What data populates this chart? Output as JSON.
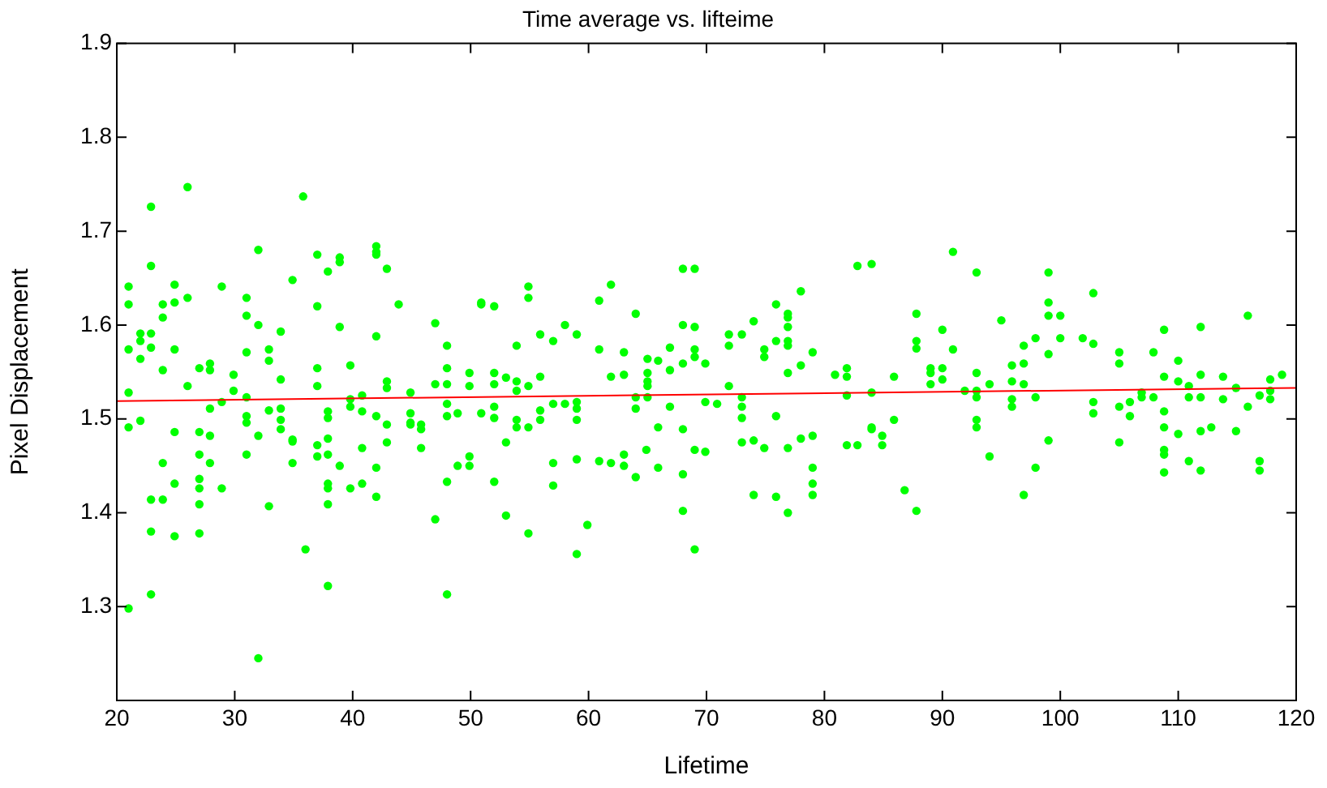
{
  "chart_data": {
    "type": "scatter",
    "title": "Time average vs. lifteime",
    "xlabel": "Lifetime",
    "ylabel": "Pixel Displacement",
    "xlim": [
      20,
      120
    ],
    "xticks": [
      20,
      30,
      40,
      50,
      60,
      70,
      80,
      90,
      100,
      110,
      120
    ],
    "ylim": [
      1.2,
      1.9
    ],
    "yticks": [
      1.3,
      1.4,
      1.5,
      1.6,
      1.7,
      1.8,
      1.9
    ],
    "grid": false,
    "legend": false,
    "marker": "circle",
    "series": [
      {
        "type": "scatter",
        "color": "#00ff00",
        "x": [
          21.0,
          21.0,
          21.0,
          21.0,
          21.0,
          22.0,
          22.0,
          22.0,
          22.0,
          22.9,
          22.9,
          22.9,
          22.9,
          23.9,
          23.9,
          23.9,
          24.9,
          24.9,
          24.9,
          24.9,
          26.0,
          26.0,
          26.0,
          27.0,
          27.0,
          27.9,
          27.9,
          27.9,
          27.9,
          28.9,
          28.9,
          29.9,
          29.9,
          31.0,
          31.0,
          31.0,
          31.0,
          31.0,
          31.0,
          32.0,
          32.0,
          32.0,
          32.9,
          32.9,
          32.9,
          33.9,
          33.9,
          33.9,
          33.9,
          33.9,
          34.9,
          34.9,
          35.8,
          37.0,
          37.0,
          37.0,
          37.0,
          37.0,
          37.9,
          37.9,
          37.9,
          37.9,
          38.9,
          38.9,
          38.9,
          39.8,
          39.8,
          39.8,
          40.8,
          40.8,
          40.8,
          42.0,
          42.0,
          42.0,
          42.0,
          42.0,
          42.9,
          42.9,
          42.9,
          42.9,
          42.9,
          43.9,
          44.9,
          44.9,
          44.9,
          44.9,
          45.8,
          45.8,
          45.8,
          47.0,
          47.0,
          48.0,
          48.0,
          48.0,
          48.0,
          48.0,
          48.9,
          49.9,
          49.9,
          50.9,
          50.9,
          50.9,
          52.0,
          52.0,
          52.0,
          52.0,
          52.0,
          53.0,
          53.0,
          53.9,
          53.9,
          53.9,
          53.9,
          53.9,
          23.9,
          22.9,
          23.9,
          24.9,
          27.0,
          27.0,
          27.0,
          27.0,
          27.0,
          27.9,
          28.9,
          22.9,
          24.9,
          22.9,
          21.0,
          31.0,
          32.9,
          32.0,
          34.9,
          34.9,
          36.0,
          37.0,
          37.9,
          37.9,
          37.9,
          37.9,
          37.9,
          38.9,
          39.8,
          40.8,
          42.0,
          42.0,
          47.0,
          48.0,
          48.0,
          48.9,
          49.9,
          49.9,
          52.0,
          53.0,
          54.9,
          54.9,
          54.9,
          54.9,
          55.9,
          55.9,
          55.9,
          55.9,
          57.0,
          57.0,
          58.0,
          58.0,
          59.0,
          59.0,
          59.0,
          59.0,
          60.9,
          60.9,
          61.9,
          61.9,
          63.0,
          63.0,
          64.0,
          64.0,
          64.0,
          65.0,
          65.0,
          65.0,
          65.0,
          65.0,
          65.9,
          65.9,
          66.9,
          66.9,
          66.9,
          68.0,
          68.0,
          68.0,
          68.0,
          69.0,
          69.0,
          69.0,
          69.0,
          69.9,
          69.9,
          70.9,
          71.9,
          71.9,
          71.9,
          73.0,
          73.0,
          73.0,
          73.0,
          73.0,
          74.0,
          74.0,
          74.9,
          74.9,
          74.9,
          75.9,
          75.9,
          75.9,
          76.9,
          76.9,
          76.9,
          76.9,
          76.9,
          76.9,
          76.9,
          78.0,
          78.0,
          78.0,
          79.0,
          79.0,
          80.9,
          81.9,
          81.9,
          81.9,
          81.9,
          82.8,
          82.8,
          84.0,
          84.0,
          84.0,
          84.0,
          84.9,
          84.9,
          85.9,
          85.9,
          87.8,
          87.8,
          87.8,
          54.9,
          57.0,
          57.0,
          59.0,
          59.0,
          59.9,
          60.9,
          61.9,
          63.0,
          63.0,
          64.0,
          64.9,
          65.9,
          68.0,
          68.0,
          69.0,
          69.0,
          69.9,
          74.0,
          75.9,
          76.9,
          79.0,
          79.0,
          79.0,
          86.8,
          87.8,
          89.0,
          89.0,
          89.0,
          90.0,
          90.0,
          90.0,
          90.9,
          90.9,
          91.9,
          92.9,
          92.9,
          92.9,
          92.9,
          92.9,
          92.9,
          94.0,
          95.0,
          95.9,
          95.9,
          95.9,
          95.9,
          96.9,
          96.9,
          96.9,
          97.9,
          97.9,
          99.0,
          99.0,
          99.0,
          99.0,
          99.0,
          100.0,
          100.0,
          101.9,
          102.8,
          102.8,
          102.8,
          102.8,
          105.0,
          105.0,
          105.0,
          105.0,
          105.9,
          105.9,
          106.9,
          106.9,
          107.9,
          107.9,
          108.8,
          108.8,
          108.8,
          108.8,
          108.8,
          110.0,
          110.0,
          110.0,
          110.9,
          110.9,
          111.9,
          111.9,
          111.9,
          111.9,
          112.8,
          113.8,
          113.8,
          114.9,
          114.9,
          115.9,
          115.9,
          116.9,
          117.8,
          117.8,
          117.8,
          118.8,
          94.0,
          96.9,
          97.9,
          108.8,
          108.8,
          110.9,
          111.9,
          116.9,
          116.9
        ],
        "values": [
          1.641,
          1.622,
          1.574,
          1.528,
          1.491,
          1.591,
          1.583,
          1.564,
          1.498,
          1.726,
          1.663,
          1.591,
          1.576,
          1.622,
          1.608,
          1.552,
          1.643,
          1.624,
          1.574,
          1.486,
          1.747,
          1.629,
          1.535,
          1.554,
          1.486,
          1.559,
          1.552,
          1.511,
          1.482,
          1.641,
          1.518,
          1.547,
          1.53,
          1.629,
          1.61,
          1.571,
          1.523,
          1.503,
          1.496,
          1.68,
          1.6,
          1.482,
          1.574,
          1.562,
          1.509,
          1.593,
          1.542,
          1.511,
          1.499,
          1.489,
          1.648,
          1.478,
          1.737,
          1.675,
          1.62,
          1.554,
          1.535,
          1.472,
          1.657,
          1.508,
          1.501,
          1.479,
          1.672,
          1.667,
          1.598,
          1.557,
          1.521,
          1.513,
          1.525,
          1.508,
          1.469,
          1.684,
          1.678,
          1.675,
          1.588,
          1.503,
          1.66,
          1.54,
          1.533,
          1.494,
          1.475,
          1.622,
          1.528,
          1.506,
          1.496,
          1.494,
          1.494,
          1.489,
          1.469,
          1.602,
          1.537,
          1.578,
          1.554,
          1.537,
          1.516,
          1.503,
          1.506,
          1.549,
          1.535,
          1.624,
          1.622,
          1.506,
          1.62,
          1.549,
          1.537,
          1.513,
          1.501,
          1.544,
          1.475,
          1.578,
          1.54,
          1.53,
          1.499,
          1.491,
          1.453,
          1.414,
          1.414,
          1.431,
          1.462,
          1.436,
          1.426,
          1.409,
          1.378,
          1.453,
          1.426,
          1.38,
          1.375,
          1.313,
          1.298,
          1.462,
          1.407,
          1.245,
          1.453,
          1.476,
          1.361,
          1.46,
          1.462,
          1.431,
          1.426,
          1.409,
          1.322,
          1.45,
          1.426,
          1.431,
          1.448,
          1.417,
          1.393,
          1.433,
          1.313,
          1.45,
          1.46,
          1.45,
          1.433,
          1.397,
          1.641,
          1.629,
          1.535,
          1.491,
          1.59,
          1.545,
          1.509,
          1.499,
          1.583,
          1.516,
          1.6,
          1.516,
          1.59,
          1.518,
          1.511,
          1.499,
          1.626,
          1.574,
          1.643,
          1.545,
          1.571,
          1.547,
          1.612,
          1.523,
          1.511,
          1.564,
          1.549,
          1.54,
          1.535,
          1.523,
          1.562,
          1.491,
          1.576,
          1.552,
          1.513,
          1.66,
          1.6,
          1.559,
          1.489,
          1.66,
          1.598,
          1.574,
          1.566,
          1.559,
          1.518,
          1.516,
          1.59,
          1.578,
          1.535,
          1.59,
          1.523,
          1.513,
          1.501,
          1.475,
          1.604,
          1.477,
          1.574,
          1.566,
          1.469,
          1.622,
          1.583,
          1.503,
          1.612,
          1.608,
          1.598,
          1.583,
          1.578,
          1.549,
          1.469,
          1.636,
          1.557,
          1.479,
          1.571,
          1.482,
          1.547,
          1.554,
          1.545,
          1.525,
          1.472,
          1.663,
          1.472,
          1.665,
          1.528,
          1.491,
          1.489,
          1.482,
          1.472,
          1.545,
          1.499,
          1.612,
          1.583,
          1.575,
          1.378,
          1.453,
          1.429,
          1.457,
          1.356,
          1.387,
          1.455,
          1.453,
          1.462,
          1.45,
          1.438,
          1.467,
          1.448,
          1.441,
          1.402,
          1.467,
          1.361,
          1.465,
          1.419,
          1.417,
          1.4,
          1.448,
          1.431,
          1.419,
          1.424,
          1.402,
          1.554,
          1.549,
          1.537,
          1.595,
          1.554,
          1.542,
          1.678,
          1.574,
          1.53,
          1.656,
          1.549,
          1.53,
          1.523,
          1.499,
          1.491,
          1.537,
          1.605,
          1.557,
          1.54,
          1.521,
          1.513,
          1.578,
          1.559,
          1.537,
          1.586,
          1.523,
          1.656,
          1.624,
          1.61,
          1.569,
          1.477,
          1.61,
          1.586,
          1.586,
          1.634,
          1.58,
          1.518,
          1.506,
          1.571,
          1.559,
          1.513,
          1.475,
          1.518,
          1.503,
          1.528,
          1.523,
          1.571,
          1.523,
          1.595,
          1.545,
          1.508,
          1.491,
          1.467,
          1.562,
          1.54,
          1.484,
          1.535,
          1.523,
          1.598,
          1.547,
          1.523,
          1.487,
          1.491,
          1.545,
          1.521,
          1.533,
          1.487,
          1.61,
          1.513,
          1.525,
          1.542,
          1.53,
          1.521,
          1.547,
          1.46,
          1.419,
          1.448,
          1.462,
          1.443,
          1.455,
          1.445,
          1.455,
          1.445
        ]
      },
      {
        "type": "line",
        "color": "#ff0000",
        "marker": "none",
        "x": [
          20,
          120
        ],
        "values": [
          1.519,
          1.533
        ]
      }
    ]
  }
}
